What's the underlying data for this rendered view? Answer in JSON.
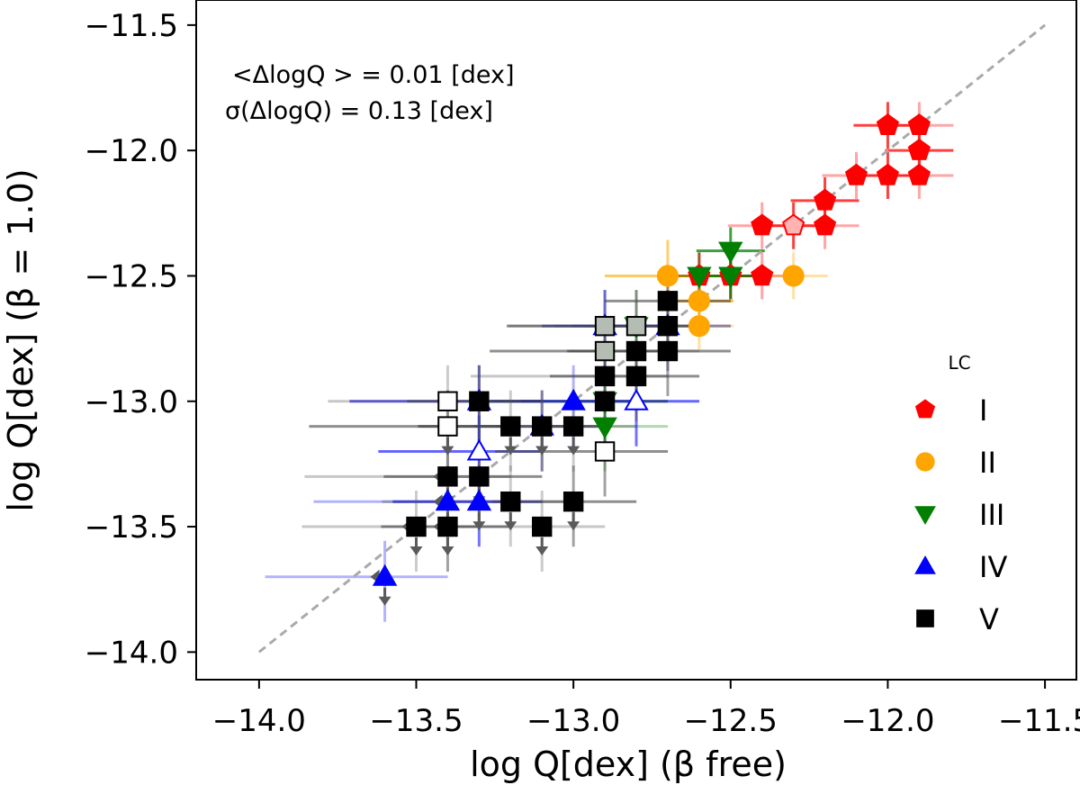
{
  "chart_data": {
    "type": "scatter",
    "xlabel": "log Q[dex] (β free)",
    "ylabel": "log Q[dex] (β = 1.0)",
    "xlim": [
      -14.2,
      -11.4
    ],
    "ylim": [
      -14.11,
      -11.4
    ],
    "x_ticks": [
      -14.0,
      -13.5,
      -13.0,
      -12.5,
      -12.0,
      -11.5
    ],
    "y_ticks": [
      -14.0,
      -13.5,
      -13.0,
      -12.5,
      -12.0,
      -11.5
    ],
    "x_tick_labels": [
      "−14.0",
      "−13.5",
      "−13.0",
      "−12.5",
      "−12.0",
      "−11.5"
    ],
    "y_tick_labels": [
      "−14.0",
      "−13.5",
      "−13.0",
      "−12.5",
      "−12.0",
      "−11.5"
    ],
    "grid": false,
    "reference_line": {
      "style": "dashed",
      "color": "#aaaaaa",
      "x": [
        -14.0,
        -11.5
      ],
      "y": [
        -14.0,
        -11.5
      ]
    },
    "annotations": [
      "<ΔlogQ > = 0.01 [dex]",
      "σ(ΔlogQ) = 0.13 [dex]"
    ],
    "legend": {
      "title": "LC",
      "placement": "right",
      "entries": [
        {
          "label": "I",
          "marker": "pentagon",
          "color": "#ff0000"
        },
        {
          "label": "II",
          "marker": "circle",
          "color": "#ffa500"
        },
        {
          "label": "III",
          "marker": "triangle-down",
          "color": "#007f00"
        },
        {
          "label": "IV",
          "marker": "triangle-up",
          "color": "#0000ff"
        },
        {
          "label": "V",
          "marker": "square",
          "color": "#000000"
        }
      ]
    },
    "series": [
      {
        "name": "I",
        "marker": "pentagon",
        "color": "#ff0000",
        "points": [
          {
            "x": -12.0,
            "y": -11.9
          },
          {
            "x": -11.9,
            "y": -11.9
          },
          {
            "x": -11.9,
            "y": -12.0
          },
          {
            "x": -12.1,
            "y": -12.1
          },
          {
            "x": -12.0,
            "y": -12.1
          },
          {
            "x": -11.9,
            "y": -12.1
          },
          {
            "x": -12.2,
            "y": -12.2
          },
          {
            "x": -12.4,
            "y": -12.3
          },
          {
            "x": -12.3,
            "y": -12.3,
            "light": true
          },
          {
            "x": -12.2,
            "y": -12.3
          },
          {
            "x": -12.5,
            "y": -12.5
          },
          {
            "x": -12.4,
            "y": -12.5
          },
          {
            "x": -12.6,
            "y": -12.5
          }
        ]
      },
      {
        "name": "II",
        "marker": "circle",
        "color": "#ffa500",
        "points": [
          {
            "x": -12.7,
            "y": -12.5
          },
          {
            "x": -12.3,
            "y": -12.5
          },
          {
            "x": -12.6,
            "y": -12.6
          },
          {
            "x": -12.6,
            "y": -12.7
          }
        ]
      },
      {
        "name": "III",
        "marker": "triangle-down",
        "color": "#007f00",
        "points": [
          {
            "x": -12.5,
            "y": -12.4
          },
          {
            "x": -12.6,
            "y": -12.5
          },
          {
            "x": -12.5,
            "y": -12.5
          },
          {
            "x": -12.8,
            "y": -12.7,
            "light": true
          },
          {
            "x": -12.9,
            "y": -13.0,
            "light": true
          },
          {
            "x": -12.9,
            "y": -13.1
          }
        ]
      },
      {
        "name": "IV",
        "marker": "triangle-up",
        "color": "#0000ff",
        "points": [
          {
            "x": -12.9,
            "y": -12.7,
            "hollow": true
          },
          {
            "x": -12.7,
            "y": -12.7,
            "light": true
          },
          {
            "x": -13.3,
            "y": -13.0
          },
          {
            "x": -13.0,
            "y": -13.0
          },
          {
            "x": -12.8,
            "y": -13.0,
            "hollow": true
          },
          {
            "x": -13.1,
            "y": -13.1
          },
          {
            "x": -13.3,
            "y": -13.2,
            "hollow": true
          },
          {
            "x": -13.4,
            "y": -13.4
          },
          {
            "x": -13.3,
            "y": -13.4
          },
          {
            "x": -13.6,
            "y": -13.7
          }
        ]
      },
      {
        "name": "V",
        "marker": "square",
        "color": "#000000",
        "points": [
          {
            "x": -12.7,
            "y": -12.6
          },
          {
            "x": -12.9,
            "y": -12.7,
            "light": true
          },
          {
            "x": -12.8,
            "y": -12.7,
            "light": true
          },
          {
            "x": -12.7,
            "y": -12.7
          },
          {
            "x": -12.9,
            "y": -12.8,
            "light": true
          },
          {
            "x": -12.8,
            "y": -12.8
          },
          {
            "x": -12.7,
            "y": -12.8
          },
          {
            "x": -12.9,
            "y": -12.9
          },
          {
            "x": -12.8,
            "y": -12.9
          },
          {
            "x": -13.4,
            "y": -13.0,
            "hollow": true
          },
          {
            "x": -13.3,
            "y": -13.0
          },
          {
            "x": -12.9,
            "y": -13.0
          },
          {
            "x": -13.4,
            "y": -13.1,
            "hollow": true
          },
          {
            "x": -13.2,
            "y": -13.1
          },
          {
            "x": -13.1,
            "y": -13.1
          },
          {
            "x": -13.0,
            "y": -13.1
          },
          {
            "x": -12.9,
            "y": -13.2,
            "hollow": true
          },
          {
            "x": -13.4,
            "y": -13.3
          },
          {
            "x": -13.3,
            "y": -13.3
          },
          {
            "x": -13.2,
            "y": -13.4
          },
          {
            "x": -13.0,
            "y": -13.4
          },
          {
            "x": -13.5,
            "y": -13.5
          },
          {
            "x": -13.4,
            "y": -13.5
          },
          {
            "x": -13.1,
            "y": -13.5
          }
        ]
      }
    ]
  }
}
